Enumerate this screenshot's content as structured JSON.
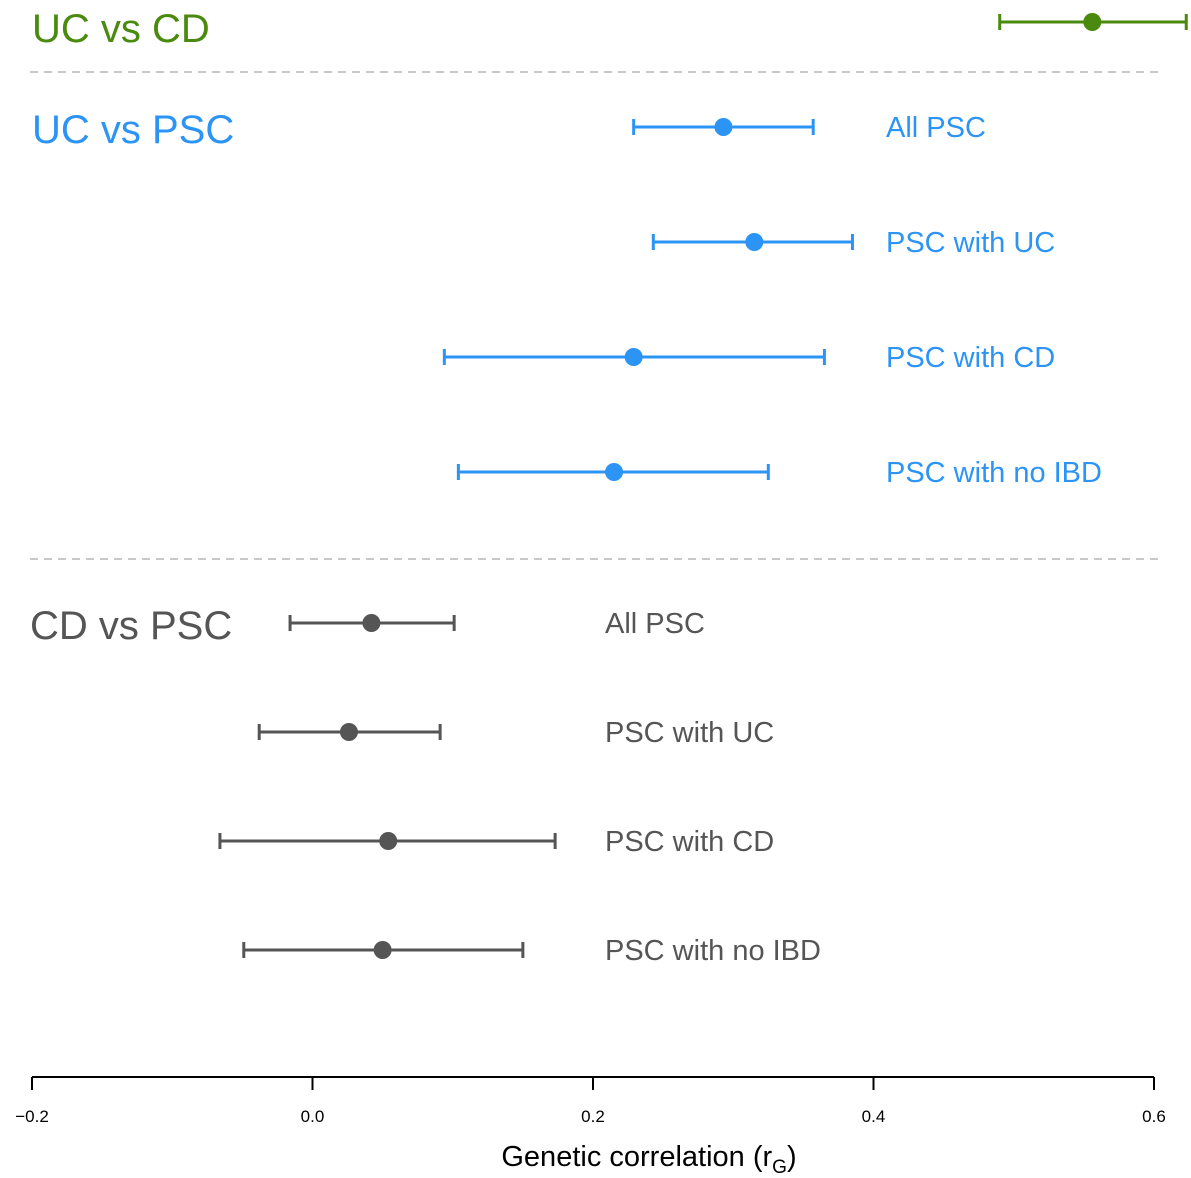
{
  "chart_data": {
    "type": "forest",
    "xlabel": "Genetic correlation (r",
    "xlabel_subscript": "G",
    "xlabel_suffix": ")",
    "xlim": [
      -0.2,
      0.6
    ],
    "x_ticks": [
      -0.2,
      0.0,
      0.2,
      0.4,
      0.6
    ],
    "x_tick_labels": [
      "−0.2",
      "0.0",
      "0.2",
      "0.4",
      "0.6"
    ],
    "groups": [
      {
        "title": "UC vs CD",
        "color": "#4a8a0f",
        "rows": [
          {
            "label": "",
            "estimate": 0.556,
            "lower": 0.49,
            "upper": 0.623
          }
        ]
      },
      {
        "title": "UC vs PSC",
        "color": "#2b94f5",
        "rows": [
          {
            "label": "All PSC",
            "estimate": 0.293,
            "lower": 0.229,
            "upper": 0.357
          },
          {
            "label": "PSC with UC",
            "estimate": 0.315,
            "lower": 0.243,
            "upper": 0.385
          },
          {
            "label": "PSC with CD",
            "estimate": 0.229,
            "lower": 0.094,
            "upper": 0.365
          },
          {
            "label": "PSC with no IBD",
            "estimate": 0.215,
            "lower": 0.104,
            "upper": 0.325
          }
        ]
      },
      {
        "title": "CD vs PSC",
        "color": "#555555",
        "rows": [
          {
            "label": "All PSC",
            "estimate": 0.042,
            "lower": -0.016,
            "upper": 0.101
          },
          {
            "label": "PSC with UC",
            "estimate": 0.026,
            "lower": -0.038,
            "upper": 0.091
          },
          {
            "label": "PSC with CD",
            "estimate": 0.054,
            "lower": -0.066,
            "upper": 0.173
          },
          {
            "label": "PSC with no IBD",
            "estimate": 0.05,
            "lower": -0.049,
            "upper": 0.15
          }
        ]
      }
    ],
    "separators": "dashed",
    "grid": false
  }
}
